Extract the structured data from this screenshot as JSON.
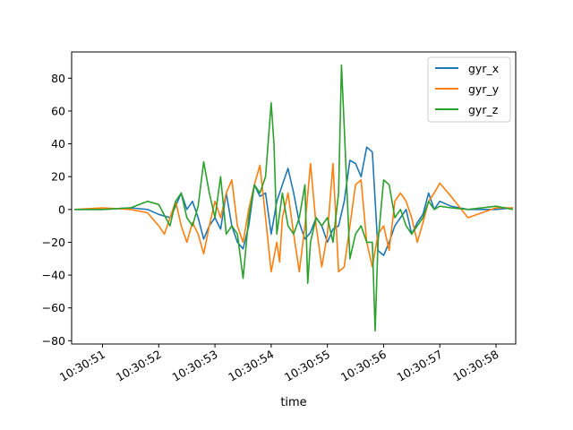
{
  "chart_data": {
    "type": "line",
    "title": "",
    "xlabel": "time",
    "ylabel": "",
    "x_unit": "seconds after 10:30:50",
    "xlim": [
      0.45,
      8.35
    ],
    "ylim": [
      -82,
      96
    ],
    "x_ticks": [
      {
        "value": 1,
        "label": "10:30:51"
      },
      {
        "value": 2,
        "label": "10:30:52"
      },
      {
        "value": 3,
        "label": "10:30:53"
      },
      {
        "value": 4,
        "label": "10:30:54"
      },
      {
        "value": 5,
        "label": "10:30:55"
      },
      {
        "value": 6,
        "label": "10:30:56"
      },
      {
        "value": 7,
        "label": "10:30:57"
      },
      {
        "value": 8,
        "label": "10:30:58"
      }
    ],
    "y_ticks": [
      -80,
      -60,
      -40,
      -20,
      0,
      20,
      40,
      60,
      80
    ],
    "legend_position": "top-right",
    "grid": false,
    "series": [
      {
        "name": "gyr_x",
        "color": "#1f77b4",
        "x": [
          0.5,
          1.0,
          1.5,
          1.8,
          2.0,
          2.2,
          2.3,
          2.4,
          2.5,
          2.6,
          2.7,
          2.8,
          2.9,
          3.0,
          3.1,
          3.2,
          3.3,
          3.4,
          3.5,
          3.6,
          3.7,
          3.8,
          3.9,
          4.0,
          4.1,
          4.2,
          4.3,
          4.4,
          4.5,
          4.6,
          4.7,
          4.8,
          4.9,
          5.0,
          5.1,
          5.2,
          5.3,
          5.4,
          5.5,
          5.6,
          5.7,
          5.8,
          5.9,
          6.0,
          6.1,
          6.2,
          6.3,
          6.4,
          6.5,
          6.6,
          6.7,
          6.8,
          6.9,
          7.0,
          7.2,
          7.5,
          8.0,
          8.3
        ],
        "y": [
          0,
          0,
          1,
          0,
          -3,
          -5,
          2,
          10,
          0,
          5,
          -5,
          -18,
          -10,
          -5,
          -12,
          10,
          -10,
          -20,
          -24,
          -10,
          15,
          8,
          10,
          -15,
          5,
          15,
          25,
          10,
          -8,
          -18,
          -14,
          -5,
          -10,
          -20,
          -12,
          -10,
          5,
          30,
          28,
          20,
          38,
          35,
          -25,
          -28,
          -20,
          -10,
          -5,
          0,
          -15,
          -8,
          -3,
          10,
          0,
          5,
          2,
          0,
          0,
          1
        ]
      },
      {
        "name": "gyr_y",
        "color": "#ff7f0e",
        "x": [
          0.5,
          1.0,
          1.5,
          1.8,
          2.0,
          2.1,
          2.2,
          2.3,
          2.4,
          2.5,
          2.6,
          2.7,
          2.8,
          2.9,
          3.0,
          3.1,
          3.2,
          3.3,
          3.4,
          3.5,
          3.6,
          3.7,
          3.8,
          3.9,
          4.0,
          4.1,
          4.15,
          4.2,
          4.3,
          4.4,
          4.5,
          4.6,
          4.7,
          4.8,
          4.9,
          5.0,
          5.1,
          5.2,
          5.3,
          5.4,
          5.5,
          5.6,
          5.7,
          5.8,
          5.9,
          6.0,
          6.1,
          6.2,
          6.3,
          6.4,
          6.5,
          6.6,
          6.7,
          6.8,
          6.9,
          7.0,
          7.2,
          7.5,
          8.0,
          8.3
        ],
        "y": [
          0,
          1,
          0,
          -2,
          -10,
          -15,
          -5,
          5,
          -10,
          -20,
          -8,
          -15,
          -27,
          -10,
          5,
          -5,
          10,
          18,
          -10,
          -20,
          0,
          15,
          27,
          -5,
          -38,
          -20,
          -32,
          -5,
          10,
          -15,
          -38,
          -10,
          28,
          -10,
          -35,
          -15,
          28,
          -38,
          -35,
          -10,
          15,
          18,
          -20,
          -35,
          -15,
          -10,
          -25,
          5,
          10,
          5,
          -5,
          -20,
          -8,
          5,
          10,
          16,
          8,
          -5,
          1,
          1
        ]
      },
      {
        "name": "gyr_z",
        "color": "#2ca02c",
        "x": [
          0.5,
          1.0,
          1.5,
          1.8,
          2.0,
          2.2,
          2.3,
          2.4,
          2.5,
          2.6,
          2.7,
          2.8,
          2.9,
          3.0,
          3.1,
          3.2,
          3.3,
          3.4,
          3.5,
          3.6,
          3.7,
          3.8,
          3.9,
          4.0,
          4.05,
          4.1,
          4.2,
          4.3,
          4.4,
          4.5,
          4.6,
          4.65,
          4.7,
          4.8,
          4.9,
          5.0,
          5.1,
          5.2,
          5.25,
          5.3,
          5.4,
          5.5,
          5.6,
          5.7,
          5.8,
          5.85,
          5.9,
          6.0,
          6.1,
          6.2,
          6.3,
          6.4,
          6.5,
          6.6,
          6.7,
          6.8,
          6.9,
          7.0,
          7.2,
          7.5,
          8.0,
          8.3
        ],
        "y": [
          0,
          0,
          1,
          5,
          3,
          -10,
          5,
          10,
          -5,
          -10,
          2,
          29,
          10,
          -5,
          20,
          -15,
          -10,
          -15,
          -42,
          -5,
          15,
          10,
          20,
          65,
          40,
          -15,
          10,
          -10,
          -15,
          -5,
          15,
          -45,
          -20,
          -5,
          -10,
          -5,
          -20,
          10,
          88,
          50,
          -30,
          -15,
          -10,
          -20,
          -20,
          -74,
          -20,
          18,
          15,
          -5,
          0,
          -10,
          -15,
          -10,
          -5,
          5,
          0,
          2,
          1,
          0,
          2,
          0
        ]
      }
    ]
  }
}
